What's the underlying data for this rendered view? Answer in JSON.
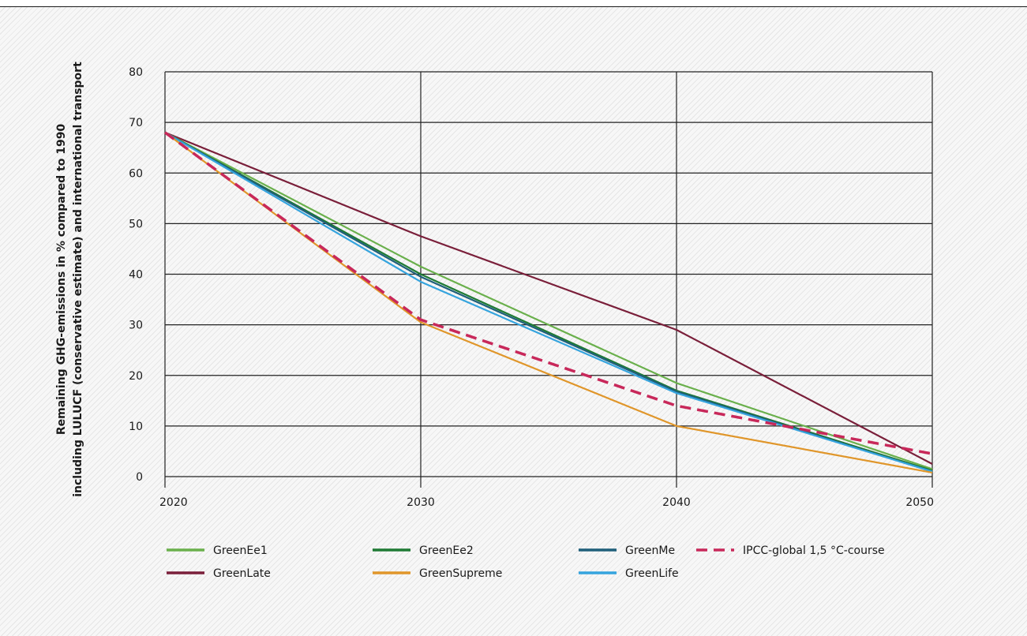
{
  "chart_data": {
    "type": "line",
    "title": "",
    "ylabel_lines": [
      "Remaining GHG-emissions in % compared to 1990",
      "including LULUCF (conservative estimate) and international transport"
    ],
    "xlabel": "",
    "xlim": [
      2020,
      2050
    ],
    "ylim": [
      0,
      80
    ],
    "xticks": [
      2020,
      2030,
      2040,
      2050
    ],
    "yticks": [
      0,
      10,
      20,
      30,
      40,
      50,
      60,
      70,
      80
    ],
    "grid": true,
    "legend_position": "bottom",
    "series": [
      {
        "name": "GreenEe1",
        "color": "#6ab04c",
        "dashed": false,
        "x": [
          2020,
          2030,
          2040,
          2050
        ],
        "y": [
          68,
          41.5,
          18.5,
          1.5
        ]
      },
      {
        "name": "GreenEe2",
        "color": "#1e7a34",
        "dashed": false,
        "x": [
          2020,
          2030,
          2040,
          2050
        ],
        "y": [
          68,
          40,
          17,
          1.2
        ]
      },
      {
        "name": "GreenMe",
        "color": "#1f5f7a",
        "dashed": false,
        "x": [
          2020,
          2030,
          2040,
          2050
        ],
        "y": [
          68,
          39.5,
          16.8,
          1.0
        ]
      },
      {
        "name": "IPCC-global 1,5 °C-course",
        "color": "#c8285a",
        "dashed": true,
        "x": [
          2020,
          2030,
          2040,
          2050
        ],
        "y": [
          68,
          31,
          14,
          4.5
        ]
      },
      {
        "name": "GreenLate",
        "color": "#7a1f3a",
        "dashed": false,
        "x": [
          2020,
          2030,
          2040,
          2050
        ],
        "y": [
          68,
          47.5,
          29,
          2.5
        ]
      },
      {
        "name": "GreenSupreme",
        "color": "#e0962a",
        "dashed": false,
        "x": [
          2020,
          2030,
          2040,
          2050
        ],
        "y": [
          68,
          30.5,
          10,
          0.8
        ]
      },
      {
        "name": "GreenLife",
        "color": "#35a4de",
        "dashed": false,
        "x": [
          2020,
          2030,
          2040,
          2050
        ],
        "y": [
          68,
          38.5,
          16.5,
          1.0
        ]
      }
    ]
  }
}
